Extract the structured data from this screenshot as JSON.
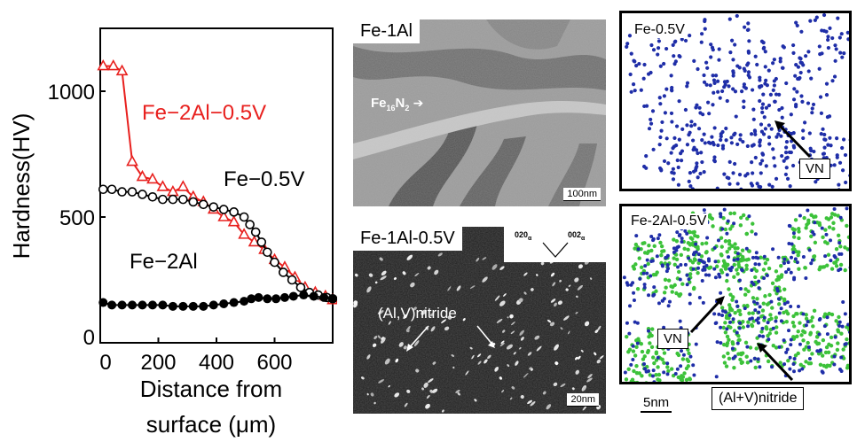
{
  "chart_data": {
    "type": "line",
    "xlabel": "Distance from surface (μm)",
    "xlabel_line1": "Distance from",
    "xlabel_line2": "surface (μm)",
    "ylabel": "Hardness(HV)",
    "xlim": [
      0,
      800
    ],
    "ylim": [
      0,
      1250
    ],
    "xticks": [
      0,
      200,
      400,
      600
    ],
    "yticks": [
      0,
      500,
      1000
    ],
    "grid": false,
    "series": [
      {
        "name": "Fe−2Al−0.5V",
        "color": "#e8201e",
        "marker": "triangle-open",
        "x": [
          10,
          45,
          75,
          110,
          145,
          180,
          215,
          250,
          285,
          320,
          355,
          390,
          425,
          460,
          495,
          530,
          565,
          600,
          635,
          670,
          705,
          740,
          775,
          800
        ],
        "y": [
          1100,
          1100,
          1080,
          720,
          660,
          650,
          620,
          600,
          620,
          580,
          560,
          530,
          500,
          480,
          430,
          400,
          370,
          330,
          300,
          260,
          220,
          200,
          185,
          170
        ]
      },
      {
        "name": "Fe−0.5V",
        "color": "#000000",
        "marker": "circle-open",
        "x": [
          10,
          40,
          75,
          110,
          145,
          180,
          215,
          250,
          285,
          320,
          355,
          390,
          425,
          460,
          495,
          515,
          535,
          555,
          575,
          600,
          630,
          660,
          690,
          720,
          750,
          780,
          800
        ],
        "y": [
          610,
          610,
          600,
          600,
          590,
          580,
          570,
          570,
          570,
          560,
          550,
          540,
          530,
          520,
          500,
          470,
          440,
          400,
          360,
          320,
          280,
          250,
          220,
          200,
          190,
          180,
          175
        ]
      },
      {
        "name": "Fe−2Al",
        "color": "#000000",
        "marker": "circle-filled",
        "x": [
          10,
          40,
          75,
          110,
          145,
          180,
          215,
          250,
          285,
          320,
          355,
          390,
          425,
          460,
          495,
          520,
          545,
          575,
          605,
          635,
          665,
          700,
          735,
          770,
          800
        ],
        "y": [
          160,
          150,
          150,
          150,
          150,
          150,
          150,
          145,
          145,
          145,
          145,
          150,
          155,
          160,
          165,
          175,
          180,
          175,
          175,
          180,
          185,
          190,
          185,
          180,
          175
        ]
      }
    ]
  },
  "panels": {
    "tem_fe1al": {
      "label": "Fe-1Al",
      "annotation": "Fe",
      "annotation_sub1": "16",
      "annotation_mid": "N",
      "annotation_sub2": "2",
      "scale": "100nm"
    },
    "tem_fe1al05v": {
      "label": "Fe-1Al-0.5V",
      "annotation": "(Al,V)nitride",
      "scale": "20nm",
      "diff_a": "020",
      "diff_a_sub": "α",
      "diff_b": "002",
      "diff_b_sub": "α"
    },
    "apt_fe05v": {
      "label": "Fe-0.5V",
      "callout": "VN"
    },
    "apt_fe2al05v": {
      "label": "Fe-2Al-0.5V",
      "callout_vn": "VN",
      "callout_nitride": "(Al+V)nitride",
      "scale": "5nm"
    }
  },
  "colors": {
    "blue_dots": "#1f2ea8",
    "green_dots": "#3cc23a",
    "red_series": "#e8201e"
  }
}
